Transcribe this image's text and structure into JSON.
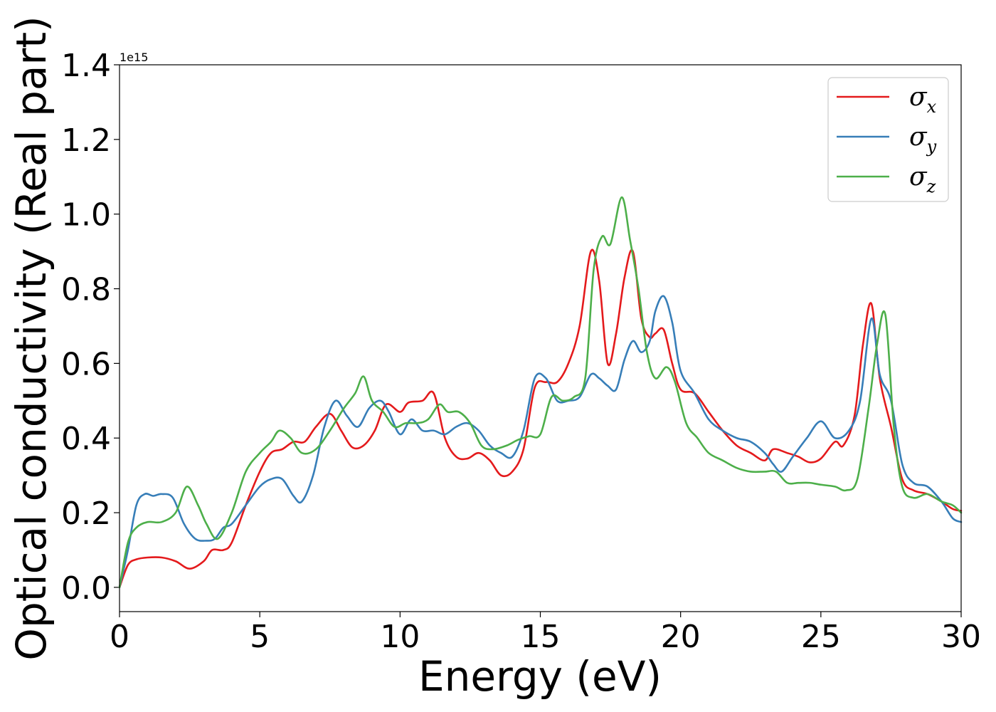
{
  "chart_data": {
    "type": "line",
    "xlabel": "Energy (eV)",
    "ylabel": "Optical conductivity (Real part)",
    "y_offset_label": "1e15",
    "xlim": [
      0,
      30
    ],
    "ylim": [
      -0.065,
      1.4
    ],
    "x_ticks": [
      0,
      5,
      10,
      15,
      20,
      25,
      30
    ],
    "x_tick_labels": [
      "0",
      "5",
      "10",
      "15",
      "20",
      "25",
      "30"
    ],
    "y_ticks": [
      0.0,
      0.2,
      0.4,
      0.6,
      0.8,
      1.0,
      1.2,
      1.4
    ],
    "y_tick_labels": [
      "0.0",
      "0.2",
      "0.4",
      "0.6",
      "0.8",
      "1.0",
      "1.2",
      "1.4"
    ],
    "grid": false,
    "legend_position": "top-right",
    "series": [
      {
        "name": "σx",
        "symbol": "σ",
        "subscript": "x",
        "color": "#e41a1c",
        "x": [
          0,
          0.3,
          0.6,
          1,
          1.5,
          2,
          2.5,
          3,
          3.3,
          3.7,
          4,
          4.5,
          5,
          5.4,
          5.8,
          6.2,
          6.6,
          7,
          7.5,
          7.9,
          8.3,
          8.7,
          9.1,
          9.5,
          10,
          10.3,
          10.8,
          11.2,
          11.6,
          12,
          12.4,
          12.8,
          13.2,
          13.6,
          14,
          14.4,
          14.8,
          15.2,
          15.6,
          16,
          16.4,
          16.8,
          17.1,
          17.4,
          17.7,
          18,
          18.3,
          18.6,
          18.9,
          19.1,
          19.4,
          19.7,
          20,
          20.5,
          21,
          21.5,
          22,
          22.5,
          23,
          23.3,
          23.8,
          24.2,
          24.6,
          25,
          25.5,
          25.8,
          26.2,
          26.5,
          26.8,
          27.1,
          27.5,
          27.9,
          28.3,
          28.8,
          29.3,
          29.7,
          30
        ],
        "y": [
          0.0,
          0.06,
          0.075,
          0.08,
          0.08,
          0.07,
          0.05,
          0.07,
          0.1,
          0.1,
          0.12,
          0.22,
          0.31,
          0.36,
          0.37,
          0.39,
          0.39,
          0.43,
          0.465,
          0.42,
          0.375,
          0.38,
          0.42,
          0.49,
          0.47,
          0.495,
          0.5,
          0.52,
          0.4,
          0.35,
          0.345,
          0.36,
          0.34,
          0.3,
          0.31,
          0.37,
          0.535,
          0.55,
          0.55,
          0.6,
          0.7,
          0.9,
          0.82,
          0.6,
          0.68,
          0.83,
          0.9,
          0.72,
          0.67,
          0.68,
          0.69,
          0.6,
          0.53,
          0.52,
          0.47,
          0.42,
          0.38,
          0.36,
          0.34,
          0.37,
          0.36,
          0.35,
          0.335,
          0.345,
          0.39,
          0.38,
          0.46,
          0.65,
          0.76,
          0.56,
          0.43,
          0.29,
          0.26,
          0.25,
          0.23,
          0.21,
          0.205
        ]
      },
      {
        "name": "σy",
        "symbol": "σ",
        "subscript": "y",
        "color": "#377eb8",
        "x": [
          0,
          0.3,
          0.6,
          0.9,
          1.2,
          1.5,
          1.9,
          2.3,
          2.7,
          3.1,
          3.4,
          3.7,
          4,
          4.5,
          5,
          5.4,
          5.8,
          6.2,
          6.5,
          6.9,
          7.3,
          7.7,
          8.1,
          8.5,
          8.9,
          9.3,
          9.6,
          10,
          10.4,
          10.8,
          11.2,
          11.6,
          12,
          12.4,
          12.8,
          13.2,
          13.6,
          14,
          14.4,
          14.8,
          15.2,
          15.6,
          16,
          16.4,
          16.8,
          17.1,
          17.4,
          17.7,
          18,
          18.3,
          18.6,
          18.9,
          19.1,
          19.4,
          19.7,
          20,
          20.5,
          21,
          21.5,
          22,
          22.5,
          23,
          23.3,
          23.6,
          24,
          24.5,
          25,
          25.5,
          26,
          26.4,
          26.8,
          27.1,
          27.5,
          27.9,
          28.3,
          28.8,
          29.3,
          29.7,
          30
        ],
        "y": [
          0.0,
          0.1,
          0.22,
          0.25,
          0.245,
          0.25,
          0.24,
          0.17,
          0.13,
          0.125,
          0.13,
          0.16,
          0.17,
          0.22,
          0.27,
          0.29,
          0.29,
          0.245,
          0.23,
          0.3,
          0.43,
          0.5,
          0.46,
          0.43,
          0.48,
          0.5,
          0.47,
          0.41,
          0.45,
          0.42,
          0.42,
          0.41,
          0.43,
          0.44,
          0.42,
          0.38,
          0.36,
          0.35,
          0.42,
          0.56,
          0.56,
          0.5,
          0.5,
          0.51,
          0.57,
          0.56,
          0.54,
          0.53,
          0.61,
          0.66,
          0.63,
          0.66,
          0.74,
          0.78,
          0.71,
          0.58,
          0.52,
          0.45,
          0.42,
          0.4,
          0.39,
          0.36,
          0.33,
          0.31,
          0.35,
          0.4,
          0.445,
          0.4,
          0.42,
          0.5,
          0.72,
          0.57,
          0.5,
          0.33,
          0.28,
          0.27,
          0.23,
          0.185,
          0.175
        ]
      },
      {
        "name": "σz",
        "symbol": "σ",
        "subscript": "z",
        "color": "#4daf4a",
        "x": [
          0,
          0.3,
          0.6,
          1,
          1.5,
          2,
          2.4,
          2.8,
          3.1,
          3.5,
          4,
          4.5,
          5,
          5.4,
          5.7,
          6.1,
          6.5,
          7,
          7.5,
          8,
          8.4,
          8.7,
          9,
          9.4,
          9.8,
          10.2,
          10.6,
          11,
          11.4,
          11.7,
          12.1,
          12.5,
          12.9,
          13.3,
          13.8,
          14.2,
          14.6,
          15,
          15.4,
          15.8,
          16.2,
          16.6,
          16.9,
          17.2,
          17.5,
          17.9,
          18.2,
          18.5,
          18.8,
          19.1,
          19.5,
          19.8,
          20.2,
          20.6,
          21,
          21.5,
          22,
          22.5,
          23,
          23.4,
          23.8,
          24.2,
          24.6,
          25,
          25.5,
          25.9,
          26.3,
          26.7,
          27,
          27.3,
          27.6,
          27.9,
          28.3,
          28.8,
          29.3,
          29.7,
          30
        ],
        "y": [
          0.0,
          0.12,
          0.16,
          0.175,
          0.175,
          0.2,
          0.27,
          0.22,
          0.17,
          0.13,
          0.2,
          0.31,
          0.36,
          0.39,
          0.42,
          0.4,
          0.36,
          0.37,
          0.42,
          0.48,
          0.52,
          0.565,
          0.5,
          0.47,
          0.43,
          0.44,
          0.44,
          0.45,
          0.49,
          0.47,
          0.47,
          0.44,
          0.38,
          0.37,
          0.38,
          0.395,
          0.405,
          0.41,
          0.51,
          0.5,
          0.51,
          0.56,
          0.85,
          0.94,
          0.92,
          1.045,
          0.93,
          0.8,
          0.63,
          0.56,
          0.59,
          0.55,
          0.44,
          0.4,
          0.36,
          0.34,
          0.32,
          0.31,
          0.31,
          0.31,
          0.28,
          0.28,
          0.28,
          0.275,
          0.27,
          0.26,
          0.29,
          0.48,
          0.65,
          0.73,
          0.43,
          0.27,
          0.24,
          0.25,
          0.23,
          0.22,
          0.2
        ]
      }
    ]
  }
}
